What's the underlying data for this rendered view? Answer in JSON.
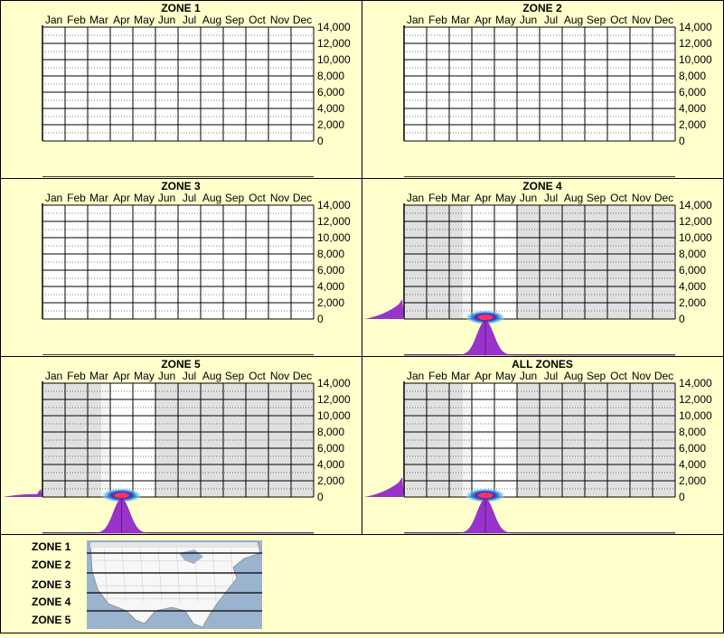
{
  "months": [
    "Jan",
    "Feb",
    "Mar",
    "Apr",
    "May",
    "Jun",
    "Jul",
    "Aug",
    "Sep",
    "Oct",
    "Nov",
    "Dec"
  ],
  "y_ticks": [
    0,
    2000,
    4000,
    6000,
    8000,
    10000,
    12000,
    14000
  ],
  "y_tick_labels": [
    "0",
    "2,000",
    "4,000",
    "6,000",
    "8,000",
    "10,000",
    "12,000",
    "14,000"
  ],
  "colors": {
    "background": "#ffffcc",
    "plot_empty": "#ffffff",
    "plot_shaded": "#e0e0e0",
    "plot_highlight": "#f3f3f3",
    "distribution": "#9933cc",
    "heat_outer": "#1f6fcf",
    "heat_inner": "#ff3366"
  },
  "chart_data": [
    {
      "type": "heatmap",
      "title": "ZONE 1",
      "categories": [
        "Jan",
        "Feb",
        "Mar",
        "Apr",
        "May",
        "Jun",
        "Jul",
        "Aug",
        "Sep",
        "Oct",
        "Nov",
        "Dec"
      ],
      "ylim": [
        0,
        14000
      ],
      "has_data": false
    },
    {
      "type": "heatmap",
      "title": "ZONE 2",
      "categories": [
        "Jan",
        "Feb",
        "Mar",
        "Apr",
        "May",
        "Jun",
        "Jul",
        "Aug",
        "Sep",
        "Oct",
        "Nov",
        "Dec"
      ],
      "ylim": [
        0,
        14000
      ],
      "has_data": false
    },
    {
      "type": "heatmap",
      "title": "ZONE 3",
      "categories": [
        "Jan",
        "Feb",
        "Mar",
        "Apr",
        "May",
        "Jun",
        "Jul",
        "Aug",
        "Sep",
        "Oct",
        "Nov",
        "Dec"
      ],
      "ylim": [
        0,
        14000
      ],
      "has_data": false
    },
    {
      "type": "heatmap",
      "title": "ZONE 4",
      "categories": [
        "Jan",
        "Feb",
        "Mar",
        "Apr",
        "May",
        "Jun",
        "Jul",
        "Aug",
        "Sep",
        "Oct",
        "Nov",
        "Dec"
      ],
      "ylim": [
        0,
        14000
      ],
      "has_data": true,
      "highlight_month_index": 2,
      "hotspot": {
        "month": 4.1,
        "elevation": 200
      },
      "month_peak": 4.1,
      "elevation_left_level": 0.12
    },
    {
      "type": "heatmap",
      "title": "ZONE 5",
      "categories": [
        "Jan",
        "Feb",
        "Mar",
        "Apr",
        "May",
        "Jun",
        "Jul",
        "Aug",
        "Sep",
        "Oct",
        "Nov",
        "Dec"
      ],
      "ylim": [
        0,
        14000
      ],
      "has_data": true,
      "highlight_month_index": 2,
      "highlight_month_extra": 5,
      "hotspot": {
        "month": 4.0,
        "elevation": 200
      },
      "month_peak": 4.0,
      "elevation_left_level": 0.05
    },
    {
      "type": "heatmap",
      "title": "ALL ZONES",
      "categories": [
        "Jan",
        "Feb",
        "Mar",
        "Apr",
        "May",
        "Jun",
        "Jul",
        "Aug",
        "Sep",
        "Oct",
        "Nov",
        "Dec"
      ],
      "ylim": [
        0,
        14000
      ],
      "has_data": true,
      "highlight_month_index": 2,
      "hotspot": {
        "month": 4.1,
        "elevation": 200
      },
      "month_peak": 4.1,
      "elevation_left_level": 0.12
    }
  ],
  "legend": {
    "zones": [
      "ZONE 1",
      "ZONE 2",
      "ZONE 3",
      "ZONE 4",
      "ZONE 5"
    ],
    "map_icon": "usa-zone-map"
  }
}
